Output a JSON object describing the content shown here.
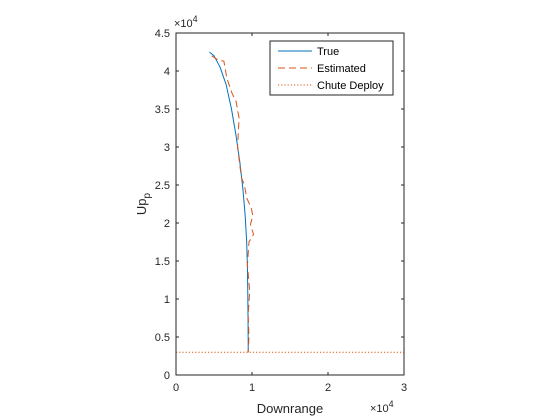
{
  "chart_data": {
    "type": "line",
    "xlabel": "Downrange",
    "ylabel": "Up",
    "ylabel_subscript": "p",
    "x_exponent_base": "×10",
    "x_exponent_power": "4",
    "y_exponent_base": "×10",
    "y_exponent_power": "4",
    "xlim": [
      0,
      30000
    ],
    "ylim": [
      0,
      45000
    ],
    "x_ticks": [
      0,
      10000,
      20000,
      30000
    ],
    "x_tick_labels": [
      "0",
      "1",
      "2",
      "3"
    ],
    "y_ticks": [
      0,
      5000,
      10000,
      15000,
      20000,
      25000,
      30000,
      35000,
      40000,
      45000
    ],
    "y_tick_labels": [
      "0",
      "0.5",
      "1",
      "1.5",
      "2",
      "2.5",
      "3",
      "3.5",
      "4",
      "4.5"
    ],
    "grid": false,
    "legend_position": "top-right",
    "series": [
      {
        "name": "True",
        "color": "#0072BD",
        "style": "solid",
        "x": [
          4400,
          5000,
          5800,
          6600,
          7300,
          7900,
          8400,
          8800,
          9100,
          9300,
          9400,
          9450,
          9480,
          9500,
          9500
        ],
        "y": [
          42500,
          42000,
          40500,
          38200,
          35000,
          31500,
          28000,
          24500,
          21000,
          17500,
          14000,
          10500,
          7000,
          4000,
          3000
        ]
      },
      {
        "name": "Estimated",
        "color": "#D95319",
        "style": "dashed",
        "x": [
          4700,
          5600,
          6300,
          6700,
          7400,
          7900,
          8300,
          8100,
          8600,
          9000,
          9300,
          9900,
          10100,
          9800,
          10200,
          9600,
          9400,
          9700,
          9500,
          9600,
          9500
        ],
        "y": [
          42000,
          41400,
          41300,
          39000,
          37000,
          36000,
          33800,
          30000,
          26000,
          25000,
          23300,
          22000,
          21000,
          19800,
          18500,
          17500,
          14500,
          11000,
          8000,
          5000,
          3000
        ]
      },
      {
        "name": "Chute Deploy",
        "color": "#D95319",
        "style": "dotted",
        "x": [
          0,
          30000
        ],
        "y": [
          3000,
          3000
        ]
      }
    ]
  }
}
